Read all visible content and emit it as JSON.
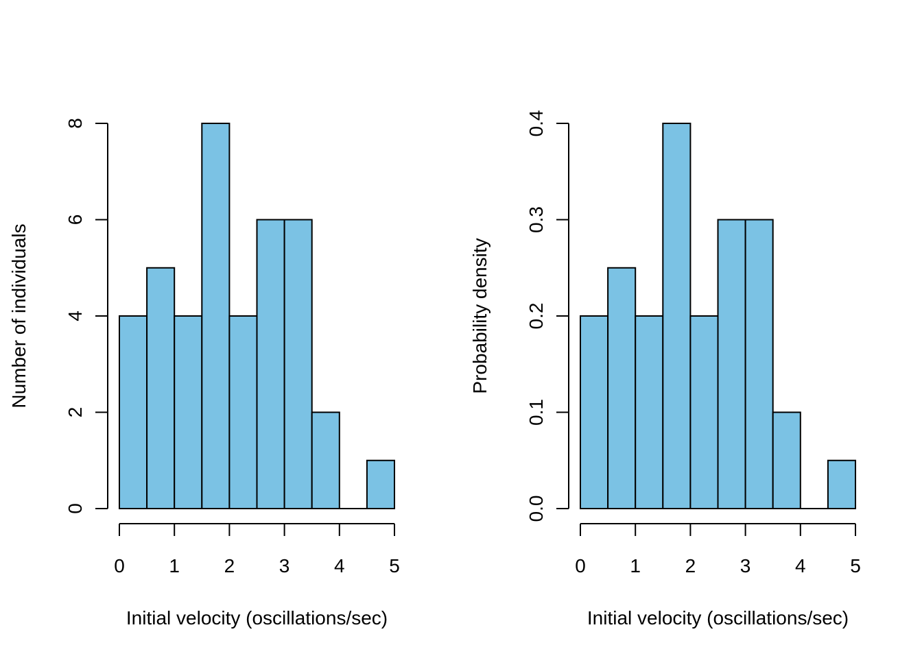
{
  "chart_data": [
    {
      "type": "bar",
      "subtype": "histogram",
      "bin_edges": [
        0,
        0.5,
        1,
        1.5,
        2,
        2.5,
        3,
        3.5,
        4,
        4.5,
        5
      ],
      "values": [
        4,
        5,
        4,
        8,
        4,
        6,
        6,
        2,
        0,
        1
      ],
      "xlabel": "Initial velocity (oscillations/sec)",
      "ylabel": "Number of individuals",
      "xlim": [
        0,
        5
      ],
      "ylim": [
        0,
        8
      ],
      "xticks": [
        "0",
        "1",
        "2",
        "3",
        "4",
        "5"
      ],
      "yticks": [
        "0",
        "2",
        "4",
        "6",
        "8"
      ],
      "bar_color": "#7BC2E4",
      "grid": false
    },
    {
      "type": "bar",
      "subtype": "histogram",
      "bin_edges": [
        0,
        0.5,
        1,
        1.5,
        2,
        2.5,
        3,
        3.5,
        4,
        4.5,
        5
      ],
      "values": [
        0.2,
        0.25,
        0.2,
        0.4,
        0.2,
        0.3,
        0.3,
        0.1,
        0,
        0.05
      ],
      "xlabel": "Initial velocity (oscillations/sec)",
      "ylabel": "Probability density",
      "xlim": [
        0,
        5
      ],
      "ylim": [
        0,
        0.4
      ],
      "xticks": [
        "0",
        "1",
        "2",
        "3",
        "4",
        "5"
      ],
      "yticks": [
        "0.0",
        "0.1",
        "0.2",
        "0.3",
        "0.4"
      ],
      "bar_color": "#7BC2E4",
      "grid": false
    }
  ]
}
